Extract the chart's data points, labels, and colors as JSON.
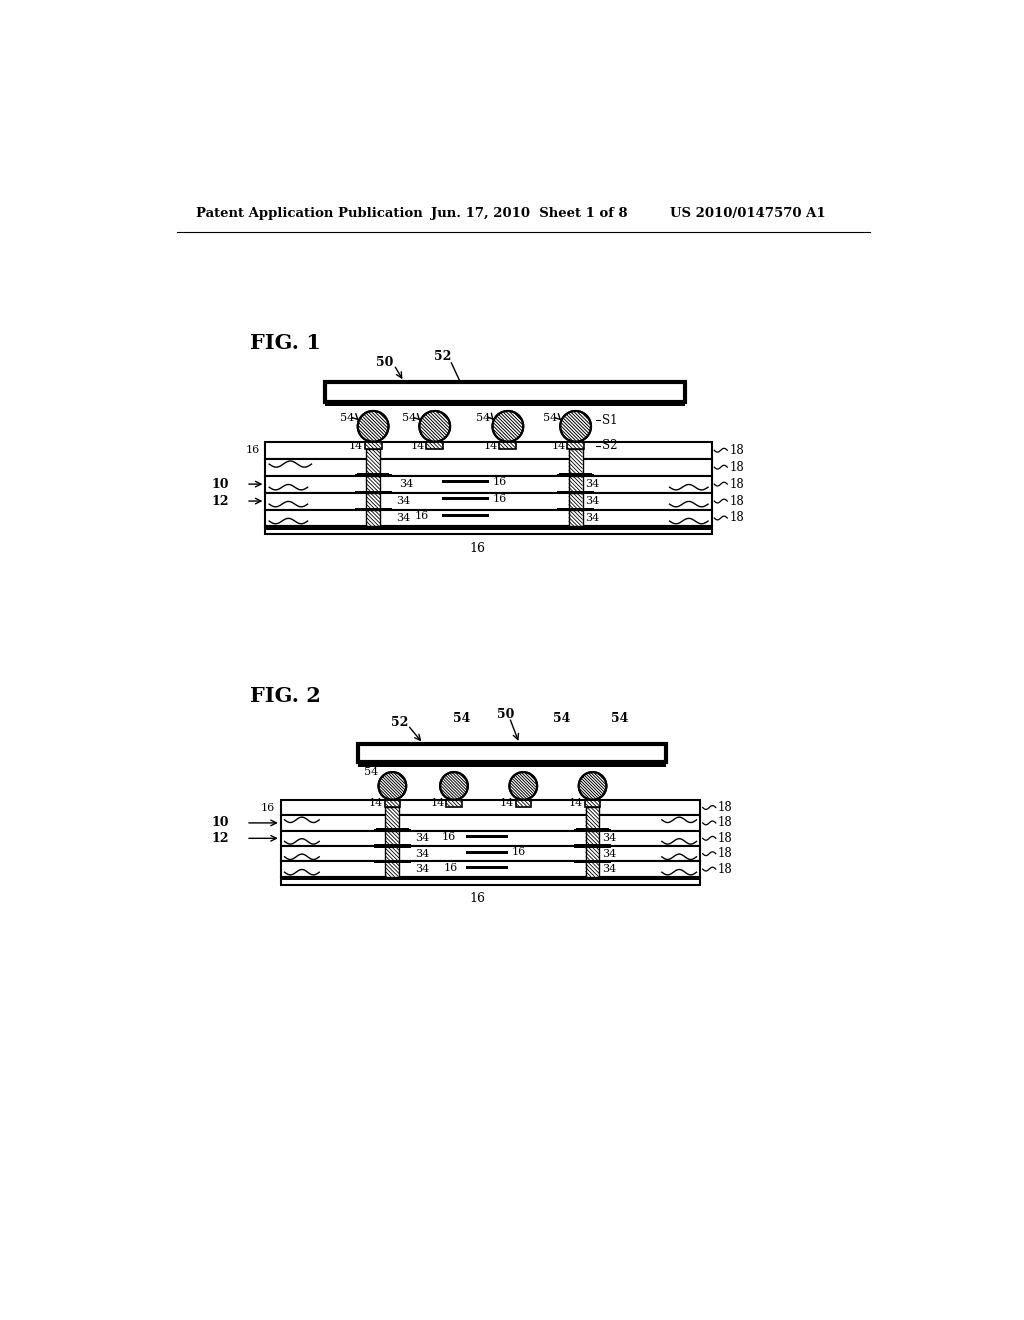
{
  "title_left": "Patent Application Publication",
  "title_center": "Jun. 17, 2010  Sheet 1 of 8",
  "title_right": "US 2010/0147570 A1",
  "fig1_label": "FIG. 1",
  "fig2_label": "FIG. 2",
  "background": "#ffffff",
  "line_color": "#000000"
}
